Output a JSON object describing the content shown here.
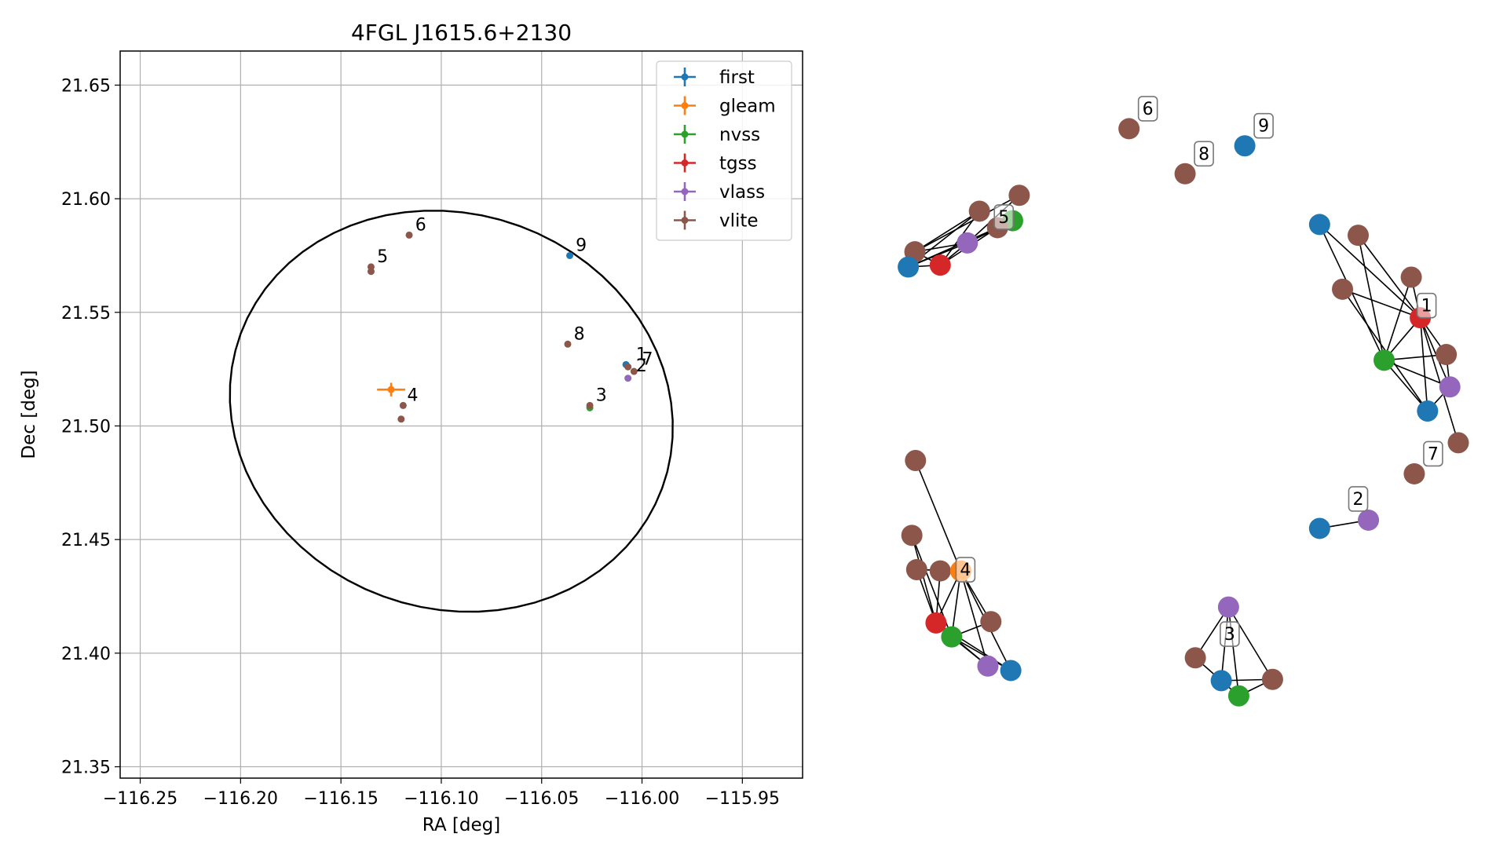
{
  "colors": {
    "first": "#1f77b4",
    "gleam": "#ff7f0e",
    "nvss": "#2ca02c",
    "tgss": "#d62728",
    "vlass": "#9467bd",
    "vlite": "#8c564b",
    "grid": "#b0b0b0",
    "ellipse": "#000000"
  },
  "chart_data": [
    {
      "type": "scatter",
      "title": "4FGL J1615.6+2130",
      "xlabel": "RA [deg]",
      "ylabel": "Dec [deg]",
      "xlim": [
        -116.26,
        -115.92
      ],
      "ylim": [
        21.345,
        21.665
      ],
      "xticks": [
        -116.25,
        -116.2,
        -116.15,
        -116.1,
        -116.05,
        -116.0,
        -115.95
      ],
      "xtick_labels": [
        "−116.25",
        "−116.20",
        "−116.15",
        "−116.10",
        "−116.05",
        "−116.00",
        "−115.95"
      ],
      "yticks": [
        21.35,
        21.4,
        21.45,
        21.5,
        21.55,
        21.6,
        21.65
      ],
      "ytick_labels": [
        "21.35",
        "21.40",
        "21.45",
        "21.50",
        "21.55",
        "21.60",
        "21.65"
      ],
      "grid": true,
      "legend_position": "top-right",
      "ellipse": {
        "center": [
          -116.095,
          21.5065
        ],
        "semi_ra": 0.111,
        "semi_dec": 0.0875,
        "angle_deg": -10
      },
      "series": [
        {
          "name": "first",
          "points": [
            {
              "x": -116.036,
              "y": 21.575
            },
            {
              "x": -116.008,
              "y": 21.527
            }
          ]
        },
        {
          "name": "gleam",
          "points": [
            {
              "x": -116.125,
              "y": 21.516,
              "xerr": 0.007,
              "yerr": 0.003
            }
          ]
        },
        {
          "name": "nvss",
          "points": [
            {
              "x": -116.026,
              "y": 21.508
            }
          ]
        },
        {
          "name": "tgss",
          "points": []
        },
        {
          "name": "vlass",
          "points": [
            {
              "x": -116.007,
              "y": 21.521
            }
          ]
        },
        {
          "name": "vlite",
          "points": [
            {
              "x": -116.135,
              "y": 21.57
            },
            {
              "x": -116.135,
              "y": 21.568
            },
            {
              "x": -116.116,
              "y": 21.584
            },
            {
              "x": -116.037,
              "y": 21.536
            },
            {
              "x": -116.007,
              "y": 21.526
            },
            {
              "x": -116.004,
              "y": 21.524
            },
            {
              "x": -116.026,
              "y": 21.509
            },
            {
              "x": -116.119,
              "y": 21.509
            },
            {
              "x": -116.12,
              "y": 21.503
            }
          ]
        }
      ],
      "annotations": [
        {
          "text": "9",
          "x": -116.033,
          "y": 21.577
        },
        {
          "text": "6",
          "x": -116.113,
          "y": 21.586
        },
        {
          "text": "5",
          "x": -116.132,
          "y": 21.572
        },
        {
          "text": "8",
          "x": -116.034,
          "y": 21.538
        },
        {
          "text": "1",
          "x": -116.003,
          "y": 21.529
        },
        {
          "text": "7",
          "x": -116.0,
          "y": 21.527
        },
        {
          "text": "2",
          "x": -116.003,
          "y": 21.524
        },
        {
          "text": "3",
          "x": -116.023,
          "y": 21.511
        },
        {
          "text": "4",
          "x": -116.117,
          "y": 21.511
        }
      ]
    },
    {
      "type": "network",
      "title": "",
      "groups": [
        {
          "label": "6",
          "nodes": [
            {
              "s": "vlite",
              "x": 0.398,
              "y": 0.089
            }
          ],
          "edges": []
        },
        {
          "label": "9",
          "nodes": [
            {
              "s": "first",
              "x": 0.59,
              "y": 0.116
            }
          ],
          "edges": []
        },
        {
          "label": "8",
          "nodes": [
            {
              "s": "vlite",
              "x": 0.491,
              "y": 0.16
            }
          ],
          "edges": []
        },
        {
          "label": "7",
          "nodes": [
            {
              "s": "vlite",
              "x": 0.871,
              "y": 0.633
            }
          ],
          "edges": []
        },
        {
          "label": "2",
          "nodes": [
            {
              "s": "first",
              "x": 0.714,
              "y": 0.719
            },
            {
              "s": "vlass",
              "x": 0.795,
              "y": 0.706
            }
          ],
          "edges": [
            [
              0,
              1
            ]
          ]
        },
        {
          "label": "5",
          "nodes": [
            {
              "s": "vlite",
              "x": 0.216,
              "y": 0.194
            },
            {
              "s": "vlite",
              "x": 0.15,
              "y": 0.219
            },
            {
              "s": "nvss",
              "x": 0.205,
              "y": 0.234
            },
            {
              "s": "vlite",
              "x": 0.18,
              "y": 0.245
            },
            {
              "s": "vlass",
              "x": 0.13,
              "y": 0.269
            },
            {
              "s": "vlite",
              "x": 0.043,
              "y": 0.283
            },
            {
              "s": "tgss",
              "x": 0.085,
              "y": 0.304
            },
            {
              "s": "first",
              "x": 0.032,
              "y": 0.307
            }
          ],
          "edges": [
            [
              0,
              4
            ],
            [
              0,
              5
            ],
            [
              1,
              5
            ],
            [
              1,
              6
            ],
            [
              1,
              7
            ],
            [
              3,
              7
            ],
            [
              3,
              6
            ],
            [
              2,
              4
            ],
            [
              4,
              5
            ],
            [
              4,
              6
            ],
            [
              4,
              7
            ],
            [
              5,
              7
            ],
            [
              5,
              6
            ],
            [
              6,
              7
            ],
            [
              2,
              3
            ]
          ]
        },
        {
          "label": "1",
          "nodes": [
            {
              "s": "first",
              "x": 0.714,
              "y": 0.24
            },
            {
              "s": "vlite",
              "x": 0.778,
              "y": 0.257
            },
            {
              "s": "vlite",
              "x": 0.866,
              "y": 0.323
            },
            {
              "s": "vlite",
              "x": 0.752,
              "y": 0.342
            },
            {
              "s": "tgss",
              "x": 0.881,
              "y": 0.387
            },
            {
              "s": "nvss",
              "x": 0.821,
              "y": 0.454
            },
            {
              "s": "vlite",
              "x": 0.924,
              "y": 0.445
            },
            {
              "s": "vlass",
              "x": 0.93,
              "y": 0.496
            },
            {
              "s": "first",
              "x": 0.893,
              "y": 0.534
            },
            {
              "s": "vlite",
              "x": 0.944,
              "y": 0.584
            }
          ],
          "edges": [
            [
              0,
              5
            ],
            [
              0,
              4
            ],
            [
              1,
              4
            ],
            [
              2,
              4
            ],
            [
              3,
              4
            ],
            [
              3,
              8
            ],
            [
              4,
              5
            ],
            [
              4,
              6
            ],
            [
              4,
              7
            ],
            [
              4,
              8
            ],
            [
              5,
              6
            ],
            [
              5,
              7
            ],
            [
              5,
              8
            ],
            [
              5,
              2
            ],
            [
              6,
              7
            ],
            [
              7,
              8
            ],
            [
              4,
              9
            ],
            [
              1,
              5
            ]
          ]
        },
        {
          "label": "4",
          "nodes": [
            {
              "s": "vlite",
              "x": 0.044,
              "y": 0.612
            },
            {
              "s": "vlite",
              "x": 0.038,
              "y": 0.73
            },
            {
              "s": "vlite",
              "x": 0.046,
              "y": 0.784
            },
            {
              "s": "vlite",
              "x": 0.085,
              "y": 0.786
            },
            {
              "s": "gleam",
              "x": 0.119,
              "y": 0.786
            },
            {
              "s": "tgss",
              "x": 0.078,
              "y": 0.868
            },
            {
              "s": "vlite",
              "x": 0.169,
              "y": 0.866
            },
            {
              "s": "nvss",
              "x": 0.104,
              "y": 0.89
            },
            {
              "s": "vlass",
              "x": 0.164,
              "y": 0.936
            },
            {
              "s": "first",
              "x": 0.202,
              "y": 0.943
            }
          ],
          "edges": [
            [
              0,
              4
            ],
            [
              1,
              5
            ],
            [
              1,
              7
            ],
            [
              2,
              5
            ],
            [
              2,
              4
            ],
            [
              3,
              5
            ],
            [
              3,
              4
            ],
            [
              4,
              5
            ],
            [
              4,
              6
            ],
            [
              4,
              7
            ],
            [
              4,
              8
            ],
            [
              4,
              9
            ],
            [
              5,
              7
            ],
            [
              5,
              9
            ],
            [
              6,
              7
            ],
            [
              7,
              8
            ],
            [
              7,
              9
            ],
            [
              5,
              8
            ]
          ]
        },
        {
          "label": "3",
          "nodes": [
            {
              "s": "vlass",
              "x": 0.563,
              "y": 0.843
            },
            {
              "s": "vlite",
              "x": 0.508,
              "y": 0.923
            },
            {
              "s": "first",
              "x": 0.551,
              "y": 0.959
            },
            {
              "s": "nvss",
              "x": 0.58,
              "y": 0.983
            },
            {
              "s": "vlite",
              "x": 0.636,
              "y": 0.957
            }
          ],
          "edges": [
            [
              0,
              1
            ],
            [
              0,
              2
            ],
            [
              0,
              3
            ],
            [
              0,
              4
            ],
            [
              1,
              2
            ],
            [
              2,
              3
            ],
            [
              3,
              4
            ],
            [
              2,
              4
            ]
          ]
        }
      ]
    }
  ]
}
